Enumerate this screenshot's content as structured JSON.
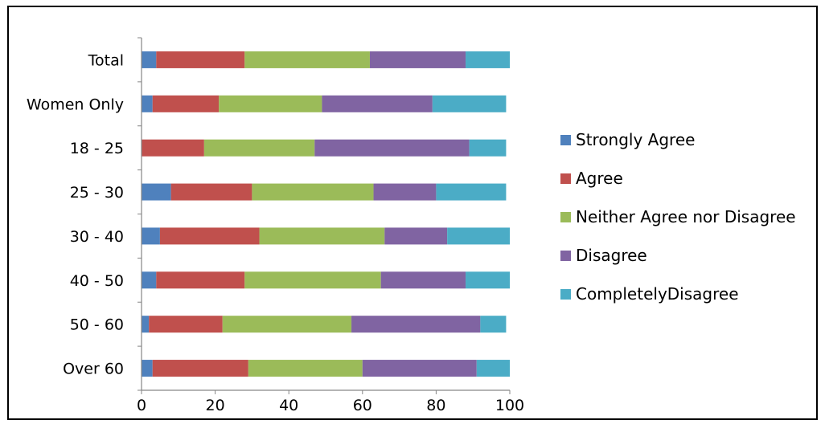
{
  "chart_data": {
    "type": "bar",
    "orientation": "horizontal",
    "stacked": true,
    "categories": [
      "Total",
      "Women Only",
      "18 - 25",
      "25 - 30",
      "30 - 40",
      "40 - 50",
      "50 - 60",
      "Over 60"
    ],
    "series": [
      {
        "name": "Strongly Agree",
        "color": "#4F81BD",
        "values": [
          4,
          3,
          0,
          8,
          5,
          4,
          2,
          3
        ]
      },
      {
        "name": "Agree",
        "color": "#C0504D",
        "values": [
          24,
          18,
          17,
          22,
          27,
          24,
          20,
          26
        ]
      },
      {
        "name": "Neither Agree nor Disagree",
        "color": "#9BBB59",
        "values": [
          34,
          28,
          30,
          33,
          34,
          37,
          35,
          31
        ]
      },
      {
        "name": "Disagree",
        "color": "#8064A2",
        "values": [
          26,
          30,
          42,
          17,
          17,
          23,
          35,
          31
        ]
      },
      {
        "name": "CompletelyDisagree",
        "color": "#4BACC6",
        "values": [
          12,
          20,
          10,
          19,
          17,
          12,
          7,
          9
        ]
      }
    ],
    "xlim": [
      0,
      100
    ],
    "xticks": [
      "0",
      "20",
      "40",
      "60",
      "80",
      "100"
    ],
    "legend_position": "right",
    "grid": false
  }
}
